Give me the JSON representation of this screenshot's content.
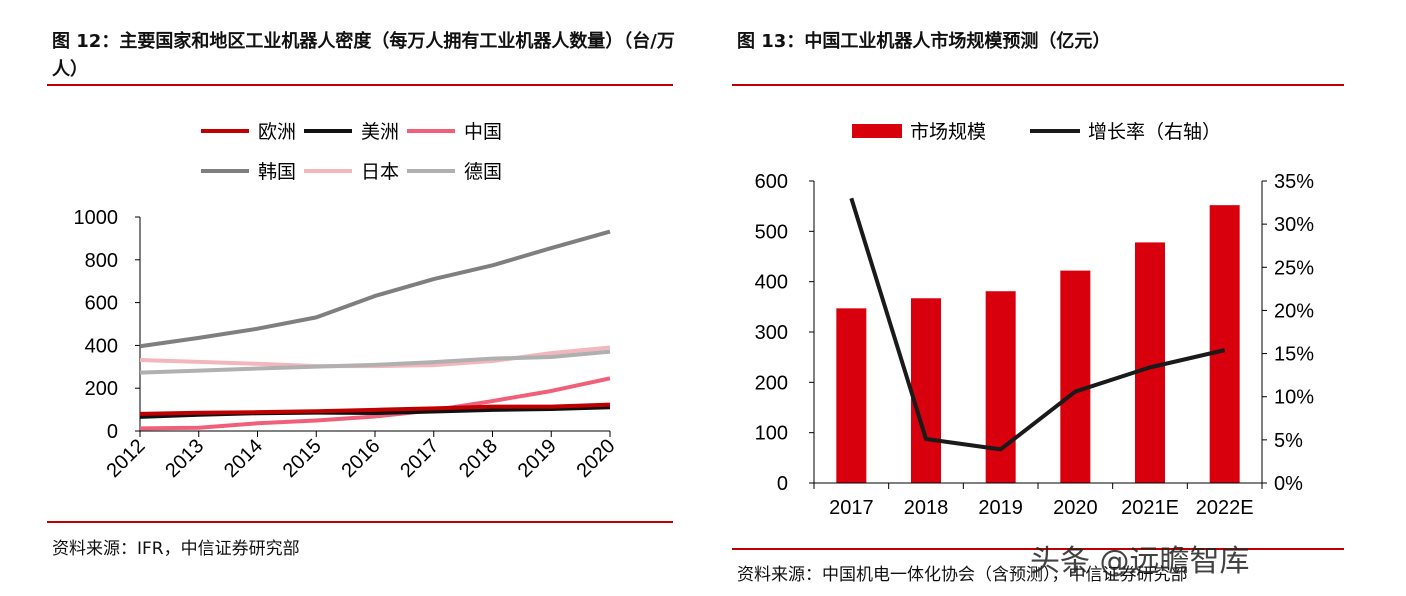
{
  "left": {
    "title": "图 12：主要国家和地区工业机器人密度（每万人拥有工业机器人数量）（台/万人）",
    "source": "资料来源：IFR，中信证券研究部"
  },
  "right": {
    "title": "图 13：中国工业机器人市场规模预测（亿元）",
    "source": "资料来源：中国机电一体化协会（含预测），中信证券研究部"
  },
  "watermark": "头条 @远瞻智库",
  "chart_data": [
    {
      "type": "line",
      "categories": [
        "2012",
        "2013",
        "2014",
        "2015",
        "2016",
        "2017",
        "2018",
        "2019",
        "2020"
      ],
      "ylim": [
        0,
        1000
      ],
      "yticks": [
        "0",
        "200",
        "400",
        "600",
        "800",
        "1000"
      ],
      "legend": "top",
      "grid": false,
      "series": [
        {
          "name": "欧洲",
          "color": "#c00000",
          "values": [
            80,
            85,
            88,
            92,
            99,
            106,
            114,
            114,
            123
          ]
        },
        {
          "name": "美洲",
          "color": "#111111",
          "values": [
            66,
            76,
            83,
            86,
            84,
            91,
            99,
            103,
            111
          ]
        },
        {
          "name": "中国",
          "color": "#f0607a",
          "values": [
            12,
            15,
            36,
            49,
            68,
            97,
            140,
            187,
            246
          ]
        },
        {
          "name": "韩国",
          "color": "#7f7f7f",
          "values": [
            396,
            435,
            478,
            531,
            631,
            710,
            774,
            855,
            932
          ]
        },
        {
          "name": "日本",
          "color": "#f4b6bd",
          "values": [
            332,
            323,
            314,
            303,
            303,
            308,
            327,
            364,
            390
          ]
        },
        {
          "name": "德国",
          "color": "#b0b0b0",
          "values": [
            273,
            282,
            292,
            301,
            309,
            322,
            338,
            346,
            371
          ]
        }
      ]
    },
    {
      "type": "bar",
      "categories": [
        "2017",
        "2018",
        "2019",
        "2020",
        "2021E",
        "2022E"
      ],
      "ylim": [
        0,
        600
      ],
      "yticks": [
        "0",
        "100",
        "200",
        "300",
        "400",
        "500",
        "600"
      ],
      "y2lim": [
        0,
        35
      ],
      "y2ticks": [
        "0%",
        "5%",
        "10%",
        "15%",
        "20%",
        "25%",
        "30%",
        "35%"
      ],
      "legend": "top",
      "grid": false,
      "series": [
        {
          "name": "市场规模",
          "type": "bar",
          "color": "#d9000d",
          "values": [
            347,
            367,
            381,
            422,
            478,
            552
          ]
        },
        {
          "name": "增长率（右轴）",
          "type": "line",
          "axis": "right",
          "color": "#1a1a1a",
          "values": [
            33.0,
            5.1,
            3.9,
            10.6,
            13.4,
            15.4
          ]
        }
      ]
    }
  ]
}
